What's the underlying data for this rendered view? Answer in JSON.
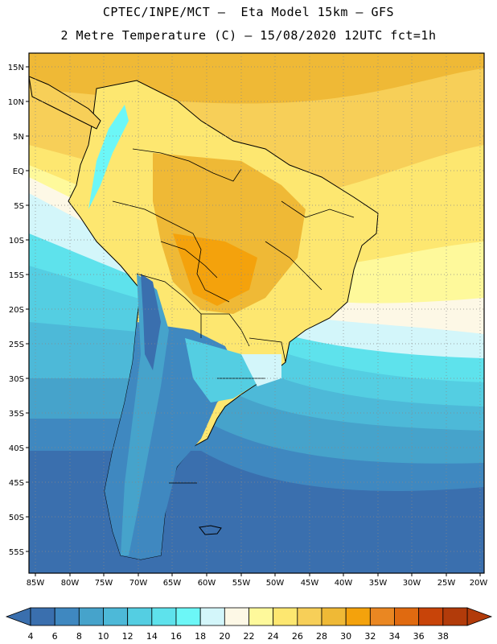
{
  "title_line1": "CPTEC/INPE/MCT –  Eta Model 15km – GFS",
  "title_line2": "2 Metre Temperature (C) – 15/08/2020 12UTC fct=1h",
  "map": {
    "lat_labels": [
      "15N",
      "10N",
      "5N",
      "EQ",
      "5S",
      "10S",
      "15S",
      "20S",
      "25S",
      "30S",
      "35S",
      "40S",
      "45S",
      "50S",
      "55S"
    ],
    "lon_labels": [
      "85W",
      "80W",
      "75W",
      "70W",
      "65W",
      "60W",
      "55W",
      "50W",
      "45W",
      "40W",
      "35W",
      "30W",
      "25W",
      "20W"
    ]
  },
  "colorbar": {
    "ticks": [
      "4",
      "6",
      "8",
      "10",
      "12",
      "14",
      "16",
      "18",
      "20",
      "22",
      "24",
      "26",
      "28",
      "30",
      "32",
      "34",
      "36",
      "38"
    ],
    "colors": [
      "#3a6fae",
      "#3f88c0",
      "#46a3cb",
      "#4db9d8",
      "#54cee2",
      "#5ee2ec",
      "#6cf7f7",
      "#d3f6fa",
      "#fdf8e6",
      "#fef99b",
      "#fde770",
      "#f7cf58",
      "#efb936",
      "#f4a20c",
      "#ea8722",
      "#e06a10",
      "#c84409",
      "#b23b0a"
    ],
    "left_arrow_color": "#3a6fae",
    "right_arrow_color": "#b23b0a"
  }
}
